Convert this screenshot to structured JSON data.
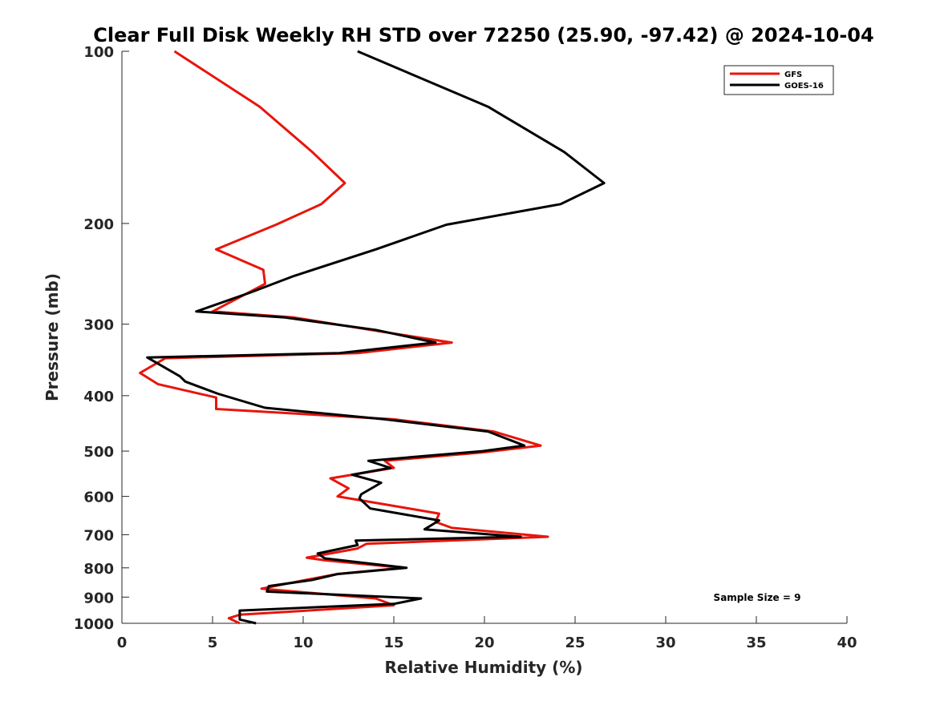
{
  "chart_data": {
    "type": "line",
    "title": "Clear Full Disk Weekly RH STD over 72250 (25.90, -97.42) @ 2024-10-04",
    "xlabel": "Relative Humidity (%)",
    "ylabel": "Pressure (mb)",
    "xlim": [
      0,
      40
    ],
    "ylim": [
      100,
      1000
    ],
    "y_scale": "log",
    "y_reversed": true,
    "grid": false,
    "legend_position": "top-right",
    "x_ticks": [
      0,
      5,
      10,
      15,
      20,
      25,
      30,
      35,
      40
    ],
    "y_ticks": [
      100,
      200,
      300,
      400,
      500,
      600,
      700,
      800,
      900,
      1000
    ],
    "annotation": "Sample Size = 9",
    "series": [
      {
        "name": "GFS",
        "color": "#e8150c",
        "points": [
          [
            2.9,
            100
          ],
          [
            7.6,
            125
          ],
          [
            10.5,
            150
          ],
          [
            12.3,
            170
          ],
          [
            11.0,
            185
          ],
          [
            8.5,
            201
          ],
          [
            5.2,
            222
          ],
          [
            7.8,
            241
          ],
          [
            7.9,
            255
          ],
          [
            5.0,
            285
          ],
          [
            9.5,
            292
          ],
          [
            14.0,
            308
          ],
          [
            18.2,
            323
          ],
          [
            13.0,
            337
          ],
          [
            2.4,
            344
          ],
          [
            1.0,
            365
          ],
          [
            2.0,
            382
          ],
          [
            5.2,
            403
          ],
          [
            5.2,
            422
          ],
          [
            15.0,
            440
          ],
          [
            20.5,
            462
          ],
          [
            23.1,
            489
          ],
          [
            19.8,
            503
          ],
          [
            14.5,
            520
          ],
          [
            15.0,
            535
          ],
          [
            11.5,
            558
          ],
          [
            12.5,
            581
          ],
          [
            11.9,
            600
          ],
          [
            17.5,
            643
          ],
          [
            17.3,
            665
          ],
          [
            18.2,
            681
          ],
          [
            23.5,
            706
          ],
          [
            13.5,
            726
          ],
          [
            13.0,
            740
          ],
          [
            10.2,
            768
          ],
          [
            11.2,
            776
          ],
          [
            15.5,
            800
          ],
          [
            11.9,
            820
          ],
          [
            10.3,
            838
          ],
          [
            7.7,
            870
          ],
          [
            14.0,
            905
          ],
          [
            15.0,
            930
          ],
          [
            6.5,
            966
          ],
          [
            5.9,
            980
          ],
          [
            6.5,
            1000
          ]
        ]
      },
      {
        "name": "GOES-16",
        "color": "#000000",
        "points": [
          [
            13.0,
            100
          ],
          [
            20.2,
            125
          ],
          [
            24.4,
            150
          ],
          [
            26.6,
            170
          ],
          [
            24.2,
            185
          ],
          [
            17.9,
            201
          ],
          [
            14.0,
            222
          ],
          [
            9.5,
            247
          ],
          [
            7.1,
            264
          ],
          [
            4.1,
            285
          ],
          [
            9.0,
            292
          ],
          [
            14.0,
            307
          ],
          [
            17.3,
            323
          ],
          [
            12.0,
            337
          ],
          [
            1.4,
            343
          ],
          [
            3.2,
            370
          ],
          [
            3.5,
            378
          ],
          [
            5.3,
            397
          ],
          [
            7.9,
            420
          ],
          [
            14.5,
            440
          ],
          [
            20.2,
            462
          ],
          [
            22.2,
            489
          ],
          [
            19.9,
            500
          ],
          [
            13.6,
            520
          ],
          [
            14.8,
            535
          ],
          [
            12.7,
            550
          ],
          [
            14.3,
            568
          ],
          [
            13.2,
            595
          ],
          [
            13.1,
            605
          ],
          [
            13.7,
            630
          ],
          [
            17.5,
            661
          ],
          [
            16.7,
            685
          ],
          [
            22.0,
            706
          ],
          [
            12.9,
            717
          ],
          [
            13.0,
            730
          ],
          [
            10.8,
            755
          ],
          [
            11.2,
            770
          ],
          [
            15.7,
            800
          ],
          [
            11.9,
            820
          ],
          [
            10.5,
            840
          ],
          [
            8.1,
            861
          ],
          [
            8.0,
            880
          ],
          [
            16.5,
            905
          ],
          [
            15.0,
            925
          ],
          [
            6.5,
            950
          ],
          [
            6.5,
            985
          ],
          [
            7.4,
            1000
          ]
        ]
      }
    ]
  }
}
